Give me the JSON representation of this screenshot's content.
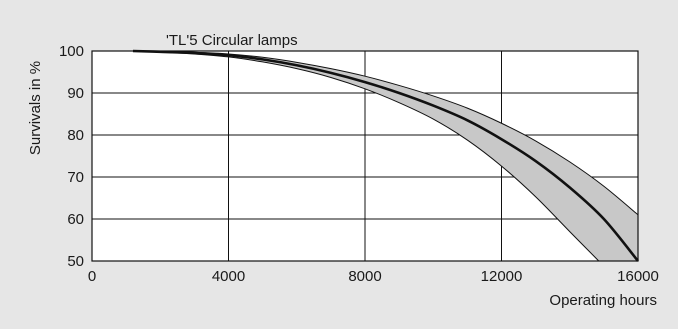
{
  "chart_data": {
    "type": "area",
    "title": "'TL'5 Circular lamps",
    "xlabel": "Operating hours",
    "ylabel": "Survivals in %",
    "xlim": [
      0,
      16000
    ],
    "ylim": [
      50,
      100
    ],
    "xticks": [
      0,
      4000,
      8000,
      12000,
      16000
    ],
    "yticks": [
      50,
      60,
      70,
      80,
      90,
      100
    ],
    "grid": true,
    "colors": {
      "band_fill": "#c8c8c8",
      "line": "#111111",
      "background": "#e6e6e6",
      "plot_bg": "#ffffff"
    },
    "series": [
      {
        "role": "upper",
        "x": [
          1200,
          2000,
          3000,
          4000,
          5000,
          6000,
          7000,
          8000,
          9000,
          10000,
          11000,
          12000,
          13000,
          14000,
          15000,
          16000
        ],
        "values": [
          100,
          99.9,
          99.7,
          99.3,
          98.5,
          97.3,
          95.8,
          94.0,
          91.8,
          89.3,
          86.4,
          82.8,
          78.6,
          73.6,
          67.8,
          61.0
        ]
      },
      {
        "role": "median",
        "x": [
          1200,
          2000,
          3000,
          4000,
          5000,
          6000,
          7000,
          8000,
          9000,
          10000,
          11000,
          12000,
          13000,
          14000,
          15000,
          16000
        ],
        "values": [
          100,
          99.8,
          99.5,
          99.0,
          98.0,
          96.6,
          94.8,
          92.6,
          90.0,
          87.0,
          83.5,
          79.0,
          73.8,
          67.5,
          60.0,
          50.0
        ]
      },
      {
        "role": "lower",
        "x": [
          1200,
          2000,
          3000,
          4000,
          5000,
          6000,
          7000,
          8000,
          9000,
          10000,
          11000,
          12000,
          13000,
          14000,
          14850
        ],
        "values": [
          100,
          99.7,
          99.3,
          98.6,
          97.4,
          95.8,
          93.7,
          91.0,
          87.7,
          83.8,
          78.8,
          72.6,
          65.3,
          57.0,
          50.0
        ]
      }
    ]
  }
}
